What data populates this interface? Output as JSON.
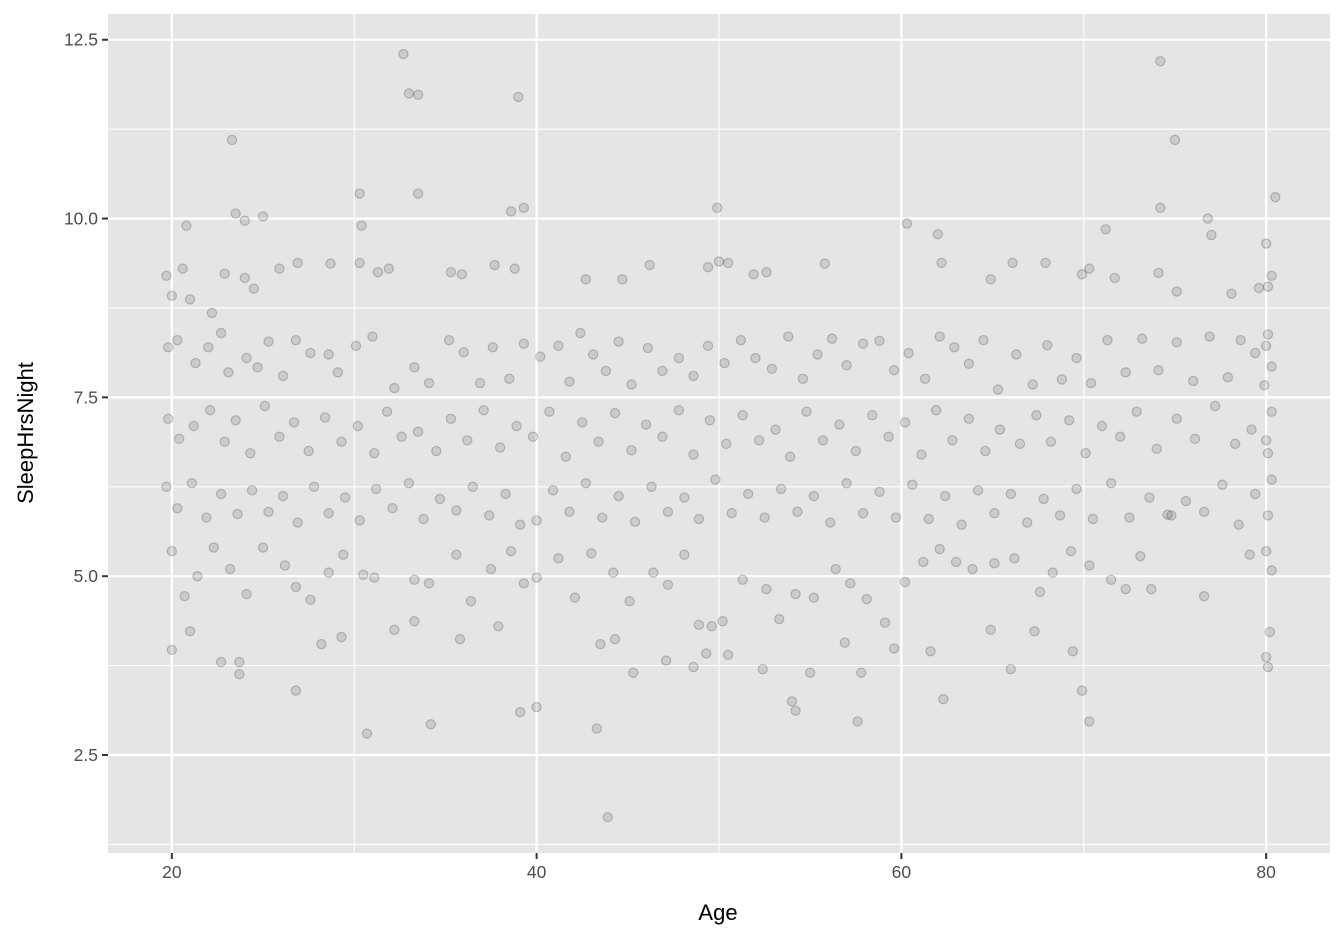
{
  "chart_data": {
    "type": "scatter",
    "title": "",
    "xlabel": "Age",
    "ylabel": "SleepHrsNight",
    "xlim": [
      16.5,
      83.5
    ],
    "ylim": [
      1.13,
      12.86
    ],
    "x_ticks": [
      20,
      40,
      60,
      80
    ],
    "x_tick_labels": [
      "20",
      "40",
      "60",
      "80"
    ],
    "y_ticks": [
      2.5,
      5.0,
      7.5,
      10.0,
      12.5
    ],
    "y_tick_labels": [
      "2.5",
      "5.0",
      "7.5",
      "10.0",
      "12.5"
    ],
    "grid": true,
    "point_color": "#000000",
    "point_alpha": 0.2,
    "panel_background": "#E5E5E5",
    "points": [
      [
        32.7,
        12.3
      ],
      [
        74.2,
        12.2
      ],
      [
        23.3,
        11.1
      ],
      [
        75,
        11.1
      ],
      [
        33,
        11.75
      ],
      [
        33.5,
        11.73
      ],
      [
        39,
        11.7
      ],
      [
        43.9,
        1.63
      ],
      [
        30.7,
        2.8
      ],
      [
        34.2,
        2.93
      ],
      [
        43.3,
        2.87
      ],
      [
        57.6,
        2.97
      ],
      [
        70.3,
        2.97
      ],
      [
        54.2,
        3.12
      ],
      [
        39.1,
        3.1
      ],
      [
        40,
        3.17
      ],
      [
        62.3,
        3.28
      ],
      [
        69.9,
        3.4
      ],
      [
        26.8,
        3.4
      ],
      [
        49.9,
        10.15
      ],
      [
        60.3,
        9.93
      ],
      [
        80.5,
        10.3
      ],
      [
        74.2,
        10.15
      ],
      [
        30.3,
        10.35
      ],
      [
        33.5,
        10.35
      ],
      [
        38.6,
        10.1
      ],
      [
        39.3,
        10.15
      ],
      [
        23.5,
        10.07
      ],
      [
        25,
        10.03
      ],
      [
        24,
        9.97
      ],
      [
        30.4,
        9.9
      ],
      [
        20.8,
        9.9
      ],
      [
        76.8,
        10
      ],
      [
        22.7,
        3.8
      ],
      [
        23.7,
        3.63
      ],
      [
        23.7,
        3.8
      ],
      [
        66,
        3.7
      ],
      [
        55,
        3.65
      ],
      [
        54,
        3.25
      ],
      [
        57.8,
        3.65
      ],
      [
        20,
        3.97
      ],
      [
        21,
        4.23
      ],
      [
        29.3,
        4.15
      ],
      [
        28.2,
        4.05
      ],
      [
        33.3,
        4.37
      ],
      [
        35.8,
        4.12
      ],
      [
        37.9,
        4.3
      ],
      [
        43.5,
        4.05
      ],
      [
        44.3,
        4.12
      ],
      [
        45.3,
        3.65
      ],
      [
        47.1,
        3.82
      ],
      [
        48.6,
        3.73
      ],
      [
        49.3,
        3.92
      ],
      [
        50.5,
        3.9
      ],
      [
        52.4,
        3.7
      ],
      [
        56.9,
        4.07
      ],
      [
        59.6,
        3.99
      ],
      [
        61.6,
        3.95
      ],
      [
        64.9,
        4.25
      ],
      [
        67.3,
        4.23
      ],
      [
        69.4,
        3.95
      ],
      [
        76.6,
        4.72
      ],
      [
        80,
        3.87
      ],
      [
        80.1,
        3.73
      ],
      [
        80.2,
        4.22
      ],
      [
        19.7,
        9.2
      ],
      [
        20,
        8.92
      ],
      [
        20.6,
        9.3
      ],
      [
        21,
        8.87
      ],
      [
        22.2,
        8.68
      ],
      [
        22.9,
        9.23
      ],
      [
        24,
        9.17
      ],
      [
        24.5,
        9.02
      ],
      [
        25.9,
        9.3
      ],
      [
        26.9,
        9.38
      ],
      [
        28.7,
        9.37
      ],
      [
        30.3,
        9.38
      ],
      [
        31.3,
        9.25
      ],
      [
        31.9,
        9.3
      ],
      [
        35.3,
        9.25
      ],
      [
        35.9,
        9.22
      ],
      [
        37.7,
        9.35
      ],
      [
        38.8,
        9.3
      ],
      [
        42.7,
        9.15
      ],
      [
        44.7,
        9.15
      ],
      [
        46.2,
        9.35
      ],
      [
        49.4,
        9.32
      ],
      [
        50,
        9.4
      ],
      [
        50.5,
        9.38
      ],
      [
        51.9,
        9.22
      ],
      [
        52.6,
        9.25
      ],
      [
        55.8,
        9.37
      ],
      [
        62.2,
        9.38
      ],
      [
        62,
        9.78
      ],
      [
        64.9,
        9.15
      ],
      [
        66.1,
        9.38
      ],
      [
        67.9,
        9.38
      ],
      [
        69.9,
        9.22
      ],
      [
        70.3,
        9.3
      ],
      [
        71.2,
        9.85
      ],
      [
        71.7,
        9.17
      ],
      [
        74.1,
        9.24
      ],
      [
        75.1,
        8.98
      ],
      [
        77,
        9.77
      ],
      [
        78.1,
        8.95
      ],
      [
        79.6,
        9.03
      ],
      [
        80,
        9.65
      ],
      [
        80.3,
        9.2
      ],
      [
        80.1,
        9.05
      ],
      [
        19.8,
        8.2
      ],
      [
        20.3,
        8.3
      ],
      [
        21.3,
        7.98
      ],
      [
        22,
        8.2
      ],
      [
        22.7,
        8.4
      ],
      [
        23.1,
        7.85
      ],
      [
        24.1,
        8.05
      ],
      [
        24.7,
        7.92
      ],
      [
        25.3,
        8.28
      ],
      [
        26.1,
        7.8
      ],
      [
        26.8,
        8.3
      ],
      [
        27.6,
        8.12
      ],
      [
        28.6,
        8.1
      ],
      [
        29.1,
        7.85
      ],
      [
        30.1,
        8.22
      ],
      [
        31,
        8.35
      ],
      [
        32.2,
        7.63
      ],
      [
        33.3,
        7.92
      ],
      [
        34.1,
        7.7
      ],
      [
        35.2,
        8.3
      ],
      [
        36,
        8.13
      ],
      [
        36.9,
        7.7
      ],
      [
        37.6,
        8.2
      ],
      [
        38.5,
        7.76
      ],
      [
        39.3,
        8.25
      ],
      [
        40.2,
        8.07
      ],
      [
        41.2,
        8.22
      ],
      [
        41.8,
        7.72
      ],
      [
        42.4,
        8.4
      ],
      [
        43.1,
        8.1
      ],
      [
        43.8,
        7.87
      ],
      [
        44.5,
        8.28
      ],
      [
        45.2,
        7.68
      ],
      [
        46.1,
        8.19
      ],
      [
        46.9,
        7.87
      ],
      [
        47.8,
        8.05
      ],
      [
        48.6,
        7.8
      ],
      [
        49.4,
        8.22
      ],
      [
        50.3,
        7.98
      ],
      [
        51.2,
        8.3
      ],
      [
        52,
        8.05
      ],
      [
        52.9,
        7.9
      ],
      [
        53.8,
        8.35
      ],
      [
        54.6,
        7.76
      ],
      [
        55.4,
        8.1
      ],
      [
        56.2,
        8.32
      ],
      [
        57,
        7.95
      ],
      [
        57.9,
        8.25
      ],
      [
        58.8,
        8.29
      ],
      [
        59.6,
        7.88
      ],
      [
        60.4,
        8.12
      ],
      [
        61.3,
        7.76
      ],
      [
        62.1,
        8.35
      ],
      [
        62.9,
        8.2
      ],
      [
        63.7,
        7.97
      ],
      [
        64.5,
        8.3
      ],
      [
        65.3,
        7.61
      ],
      [
        66.3,
        8.1
      ],
      [
        67.2,
        7.68
      ],
      [
        68,
        8.23
      ],
      [
        68.8,
        7.75
      ],
      [
        69.6,
        8.05
      ],
      [
        70.4,
        7.7
      ],
      [
        71.3,
        8.3
      ],
      [
        72.3,
        7.85
      ],
      [
        73.2,
        8.32
      ],
      [
        74.1,
        7.88
      ],
      [
        75.1,
        8.27
      ],
      [
        76,
        7.73
      ],
      [
        76.9,
        8.35
      ],
      [
        77.9,
        7.78
      ],
      [
        78.6,
        8.3
      ],
      [
        79.4,
        8.12
      ],
      [
        80,
        8.22
      ],
      [
        80.3,
        7.93
      ],
      [
        80.1,
        8.38
      ],
      [
        79.9,
        7.67
      ],
      [
        19.8,
        7.2
      ],
      [
        20.4,
        6.92
      ],
      [
        21.2,
        7.1
      ],
      [
        22.1,
        7.32
      ],
      [
        22.9,
        6.88
      ],
      [
        23.5,
        7.18
      ],
      [
        24.3,
        6.72
      ],
      [
        25.1,
        7.38
      ],
      [
        25.9,
        6.95
      ],
      [
        26.7,
        7.15
      ],
      [
        27.5,
        6.75
      ],
      [
        28.4,
        7.22
      ],
      [
        29.3,
        6.88
      ],
      [
        30.2,
        7.1
      ],
      [
        31.1,
        6.72
      ],
      [
        31.8,
        7.3
      ],
      [
        32.6,
        6.95
      ],
      [
        33.5,
        7.02
      ],
      [
        34.5,
        6.75
      ],
      [
        35.3,
        7.2
      ],
      [
        36.2,
        6.9
      ],
      [
        37.1,
        7.32
      ],
      [
        38,
        6.8
      ],
      [
        38.9,
        7.1
      ],
      [
        39.8,
        6.95
      ],
      [
        40.7,
        7.3
      ],
      [
        41.6,
        6.67
      ],
      [
        42.5,
        7.15
      ],
      [
        43.4,
        6.88
      ],
      [
        44.3,
        7.28
      ],
      [
        45.2,
        6.76
      ],
      [
        46,
        7.12
      ],
      [
        46.9,
        6.95
      ],
      [
        47.8,
        7.32
      ],
      [
        48.6,
        6.7
      ],
      [
        49.5,
        7.18
      ],
      [
        50.4,
        6.85
      ],
      [
        51.3,
        7.25
      ],
      [
        52.2,
        6.9
      ],
      [
        53.1,
        7.05
      ],
      [
        53.9,
        6.67
      ],
      [
        54.8,
        7.3
      ],
      [
        55.7,
        6.9
      ],
      [
        56.6,
        7.12
      ],
      [
        57.5,
        6.75
      ],
      [
        58.4,
        7.25
      ],
      [
        59.3,
        6.95
      ],
      [
        60.2,
        7.15
      ],
      [
        61.1,
        6.7
      ],
      [
        61.9,
        7.32
      ],
      [
        62.8,
        6.9
      ],
      [
        63.7,
        7.2
      ],
      [
        64.6,
        6.75
      ],
      [
        65.4,
        7.05
      ],
      [
        66.5,
        6.85
      ],
      [
        67.4,
        7.25
      ],
      [
        68.2,
        6.88
      ],
      [
        69.2,
        7.18
      ],
      [
        70.1,
        6.72
      ],
      [
        71,
        7.1
      ],
      [
        72,
        6.95
      ],
      [
        72.9,
        7.3
      ],
      [
        74,
        6.78
      ],
      [
        75.1,
        7.2
      ],
      [
        76.1,
        6.92
      ],
      [
        77.2,
        7.38
      ],
      [
        78.3,
        6.85
      ],
      [
        79.2,
        7.05
      ],
      [
        80,
        6.9
      ],
      [
        80.3,
        7.3
      ],
      [
        80.1,
        6.72
      ],
      [
        19.7,
        6.25
      ],
      [
        20.3,
        5.95
      ],
      [
        21.1,
        6.3
      ],
      [
        21.9,
        5.82
      ],
      [
        22.7,
        6.15
      ],
      [
        23.6,
        5.87
      ],
      [
        24.4,
        6.2
      ],
      [
        25.3,
        5.9
      ],
      [
        26.1,
        6.12
      ],
      [
        26.9,
        5.75
      ],
      [
        27.8,
        6.25
      ],
      [
        28.6,
        5.88
      ],
      [
        29.5,
        6.1
      ],
      [
        30.3,
        5.78
      ],
      [
        31.2,
        6.22
      ],
      [
        32.1,
        5.95
      ],
      [
        33,
        6.3
      ],
      [
        33.8,
        5.8
      ],
      [
        34.7,
        6.08
      ],
      [
        35.6,
        5.92
      ],
      [
        36.5,
        6.25
      ],
      [
        37.4,
        5.85
      ],
      [
        38.3,
        6.15
      ],
      [
        39.1,
        5.72
      ],
      [
        40,
        5.78
      ],
      [
        40.9,
        6.2
      ],
      [
        41.8,
        5.9
      ],
      [
        42.7,
        6.3
      ],
      [
        43.6,
        5.82
      ],
      [
        44.5,
        6.12
      ],
      [
        45.4,
        5.76
      ],
      [
        46.3,
        6.25
      ],
      [
        47.2,
        5.9
      ],
      [
        48.1,
        6.1
      ],
      [
        48.9,
        5.8
      ],
      [
        49.8,
        6.35
      ],
      [
        50.7,
        5.88
      ],
      [
        51.6,
        6.15
      ],
      [
        52.5,
        5.82
      ],
      [
        53.4,
        6.22
      ],
      [
        54.3,
        5.9
      ],
      [
        55.2,
        6.12
      ],
      [
        56.1,
        5.75
      ],
      [
        57,
        6.3
      ],
      [
        57.9,
        5.88
      ],
      [
        58.8,
        6.18
      ],
      [
        59.7,
        5.82
      ],
      [
        60.6,
        6.28
      ],
      [
        61.5,
        5.8
      ],
      [
        62.4,
        6.12
      ],
      [
        63.3,
        5.72
      ],
      [
        64.2,
        6.2
      ],
      [
        65.1,
        5.88
      ],
      [
        66,
        6.15
      ],
      [
        66.9,
        5.75
      ],
      [
        67.8,
        6.08
      ],
      [
        68.7,
        5.85
      ],
      [
        69.6,
        6.22
      ],
      [
        70.5,
        5.8
      ],
      [
        71.5,
        6.3
      ],
      [
        72.5,
        5.82
      ],
      [
        73.6,
        6.1
      ],
      [
        74.6,
        5.86
      ],
      [
        75.6,
        6.05
      ],
      [
        76.6,
        5.9
      ],
      [
        77.6,
        6.28
      ],
      [
        78.5,
        5.72
      ],
      [
        79.4,
        6.15
      ],
      [
        80.1,
        5.85
      ],
      [
        80.3,
        6.35
      ],
      [
        20,
        5.35
      ],
      [
        20.7,
        4.72
      ],
      [
        21.4,
        5
      ],
      [
        22.3,
        5.4
      ],
      [
        23.2,
        5.1
      ],
      [
        24.1,
        4.75
      ],
      [
        25,
        5.4
      ],
      [
        26.2,
        5.15
      ],
      [
        26.8,
        4.85
      ],
      [
        27.6,
        4.67
      ],
      [
        28.6,
        5.05
      ],
      [
        29.4,
        5.3
      ],
      [
        30.5,
        5.02
      ],
      [
        31.1,
        4.98
      ],
      [
        32.2,
        4.25
      ],
      [
        33.3,
        4.95
      ],
      [
        34.1,
        4.9
      ],
      [
        35.6,
        5.3
      ],
      [
        36.4,
        4.65
      ],
      [
        37.5,
        5.1
      ],
      [
        38.6,
        5.35
      ],
      [
        39.3,
        4.9
      ],
      [
        40,
        4.98
      ],
      [
        41.2,
        5.25
      ],
      [
        42.1,
        4.7
      ],
      [
        43,
        5.32
      ],
      [
        44.2,
        5.05
      ],
      [
        45.1,
        4.65
      ],
      [
        46.4,
        5.05
      ],
      [
        47.2,
        4.88
      ],
      [
        48.1,
        5.3
      ],
      [
        48.9,
        4.32
      ],
      [
        49.6,
        4.3
      ],
      [
        50.2,
        4.37
      ],
      [
        51.3,
        4.95
      ],
      [
        52.6,
        4.82
      ],
      [
        53.3,
        4.4
      ],
      [
        54.2,
        4.75
      ],
      [
        55.2,
        4.7
      ],
      [
        56.4,
        5.1
      ],
      [
        57.2,
        4.9
      ],
      [
        58.1,
        4.68
      ],
      [
        59.1,
        4.35
      ],
      [
        60.2,
        4.92
      ],
      [
        61.2,
        5.2
      ],
      [
        62.1,
        5.38
      ],
      [
        63,
        5.2
      ],
      [
        63.9,
        5.1
      ],
      [
        65.1,
        5.18
      ],
      [
        66.2,
        5.25
      ],
      [
        67.6,
        4.78
      ],
      [
        68.3,
        5.05
      ],
      [
        69.3,
        5.35
      ],
      [
        70.3,
        5.15
      ],
      [
        71.5,
        4.95
      ],
      [
        72.3,
        4.82
      ],
      [
        73.1,
        5.28
      ],
      [
        73.7,
        4.82
      ],
      [
        74.8,
        5.85
      ],
      [
        79.1,
        5.3
      ],
      [
        80,
        5.35
      ],
      [
        80.3,
        5.08
      ]
    ]
  }
}
